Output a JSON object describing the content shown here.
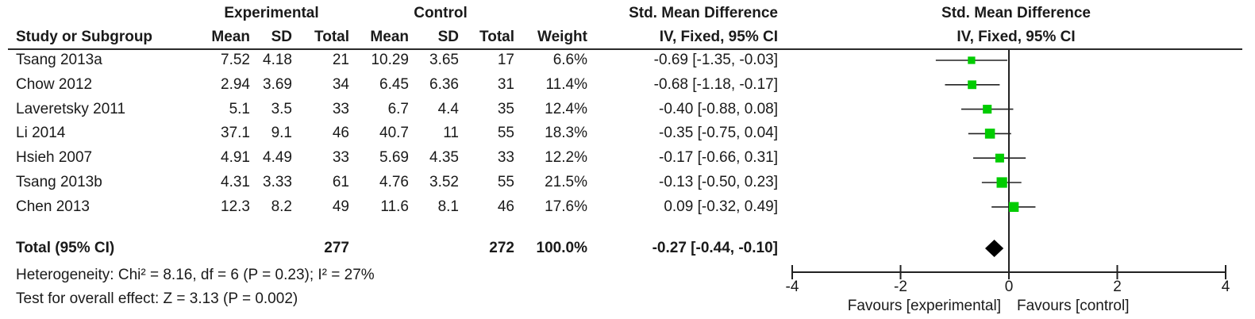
{
  "headers": {
    "group1": "Experimental",
    "group2": "Control",
    "effect": "Std. Mean Difference",
    "study": "Study or Subgroup",
    "mean1": "Mean",
    "sd1": "SD",
    "total1": "Total",
    "mean2": "Mean",
    "sd2": "SD",
    "total2": "Total",
    "weight": "Weight",
    "ci": "IV, Fixed, 95% CI",
    "plot_title": "Std. Mean Difference",
    "plot_subtitle": "IV, Fixed, 95% CI"
  },
  "rows": [
    {
      "study": "Tsang 2013a",
      "mean1": "7.52",
      "sd1": "4.18",
      "n1": "21",
      "mean2": "10.29",
      "sd2": "3.65",
      "n2": "17",
      "weight": "6.6%",
      "ci": "-0.69 [-1.35, -0.03]"
    },
    {
      "study": "Chow 2012",
      "mean1": "2.94",
      "sd1": "3.69",
      "n1": "34",
      "mean2": "6.45",
      "sd2": "6.36",
      "n2": "31",
      "weight": "11.4%",
      "ci": "-0.68 [-1.18, -0.17]"
    },
    {
      "study": "Laveretsky 2011",
      "mean1": "5.1",
      "sd1": "3.5",
      "n1": "33",
      "mean2": "6.7",
      "sd2": "4.4",
      "n2": "35",
      "weight": "12.4%",
      "ci": "-0.40 [-0.88, 0.08]"
    },
    {
      "study": "Li 2014",
      "mean1": "37.1",
      "sd1": "9.1",
      "n1": "46",
      "mean2": "40.7",
      "sd2": "11",
      "n2": "55",
      "weight": "18.3%",
      "ci": "-0.35 [-0.75, 0.04]"
    },
    {
      "study": "Hsieh 2007",
      "mean1": "4.91",
      "sd1": "4.49",
      "n1": "33",
      "mean2": "5.69",
      "sd2": "4.35",
      "n2": "33",
      "weight": "12.2%",
      "ci": "-0.17 [-0.66, 0.31]"
    },
    {
      "study": "Tsang 2013b",
      "mean1": "4.31",
      "sd1": "3.33",
      "n1": "61",
      "mean2": "4.76",
      "sd2": "3.52",
      "n2": "55",
      "weight": "21.5%",
      "ci": "-0.13 [-0.50, 0.23]"
    },
    {
      "study": "Chen 2013",
      "mean1": "12.3",
      "sd1": "8.2",
      "n1": "49",
      "mean2": "11.6",
      "sd2": "8.1",
      "n2": "46",
      "weight": "17.6%",
      "ci": "0.09 [-0.32, 0.49]"
    }
  ],
  "total": {
    "label": "Total (95% CI)",
    "n1": "277",
    "n2": "272",
    "weight": "100.0%",
    "ci": "-0.27 [-0.44, -0.10]"
  },
  "heterogeneity": "Heterogeneity: Chi² = 8.16, df = 6 (P = 0.23); I² = 27%",
  "overall_effect": "Test for overall effect: Z = 3.13 (P = 0.002)",
  "chart_data": {
    "type": "forest",
    "x": [
      -4,
      -2,
      0,
      2,
      4
    ],
    "xlim": [
      -4,
      4
    ],
    "tick_labels": [
      "-4",
      "-2",
      "0",
      "2",
      "4"
    ],
    "favours_left": "Favours [experimental]",
    "favours_right": "Favours [control]",
    "point_color": "#00cc00",
    "diamond_color": "#000000",
    "studies": [
      {
        "name": "Tsang 2013a",
        "estimate": -0.69,
        "lower": -1.35,
        "upper": -0.03,
        "weight": 6.6
      },
      {
        "name": "Chow 2012",
        "estimate": -0.68,
        "lower": -1.18,
        "upper": -0.17,
        "weight": 11.4
      },
      {
        "name": "Laveretsky 2011",
        "estimate": -0.4,
        "lower": -0.88,
        "upper": 0.08,
        "weight": 12.4
      },
      {
        "name": "Li 2014",
        "estimate": -0.35,
        "lower": -0.75,
        "upper": 0.04,
        "weight": 18.3
      },
      {
        "name": "Hsieh 2007",
        "estimate": -0.17,
        "lower": -0.66,
        "upper": 0.31,
        "weight": 12.2
      },
      {
        "name": "Tsang 2013b",
        "estimate": -0.13,
        "lower": -0.5,
        "upper": 0.23,
        "weight": 21.5
      },
      {
        "name": "Chen 2013",
        "estimate": 0.09,
        "lower": -0.32,
        "upper": 0.49,
        "weight": 17.6
      }
    ],
    "pooled": {
      "estimate": -0.27,
      "lower": -0.44,
      "upper": -0.1
    }
  }
}
